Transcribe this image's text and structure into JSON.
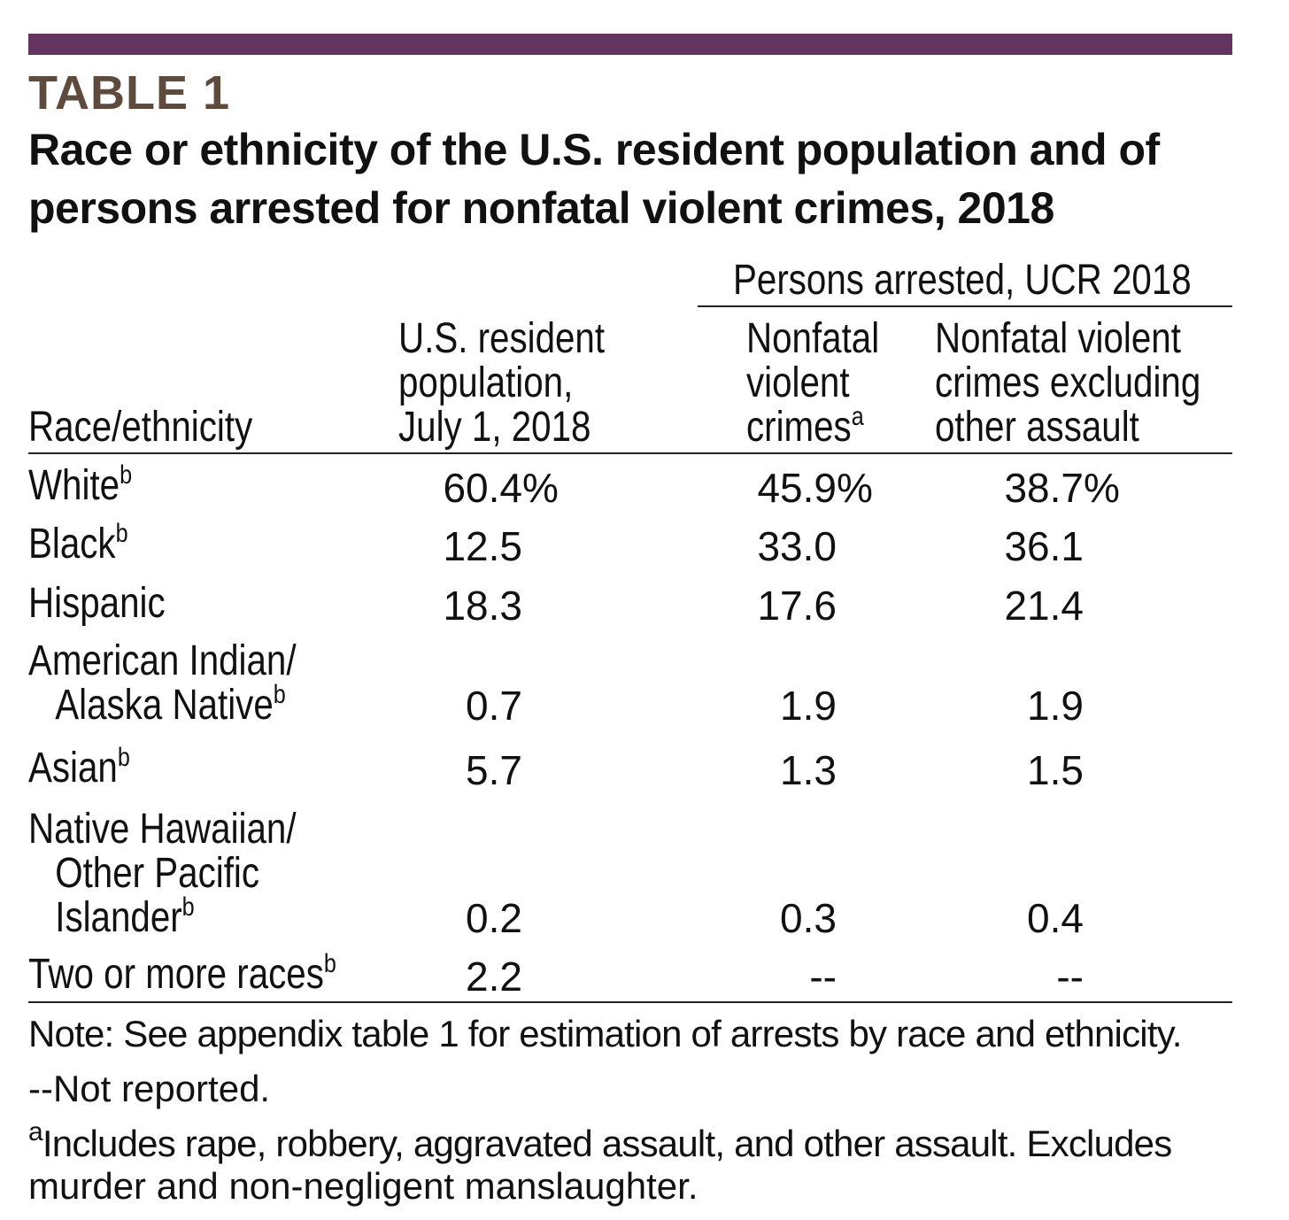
{
  "colors": {
    "bar": "#63345f",
    "label": "#5e4b3d"
  },
  "table_label": "TABLE 1",
  "title_line1": "Race or ethnicity of the U.S. resident population and of",
  "title_line2": "persons arrested for nonfatal violent crimes, 2018",
  "group_header": "Persons arrested, UCR 2018",
  "columns": {
    "race": "Race/ethnicity",
    "population": [
      "U.S. resident",
      "population,",
      "July 1, 2018"
    ],
    "nonfatal": [
      "Nonfatal",
      "violent",
      "crimes"
    ],
    "nonfatal_sup": "a",
    "excluding": [
      "Nonfatal violent",
      "crimes excluding",
      "other assault"
    ]
  },
  "rows": [
    {
      "label": [
        "White"
      ],
      "sup": "b",
      "population": "60.4",
      "nonfatal": "45.9",
      "excluding": "38.7",
      "unit": "%"
    },
    {
      "label": [
        "Black"
      ],
      "sup": "b",
      "population": "12.5",
      "nonfatal": "33.0",
      "excluding": "36.1"
    },
    {
      "label": [
        "Hispanic"
      ],
      "population": "18.3",
      "nonfatal": "17.6",
      "excluding": "21.4"
    },
    {
      "label": [
        "American Indian/",
        "Alaska Native"
      ],
      "sup": "b",
      "population": "0.7",
      "nonfatal": "1.9",
      "excluding": "1.9"
    },
    {
      "label": [
        "Asian"
      ],
      "sup": "b",
      "population": "5.7",
      "nonfatal": "1.3",
      "excluding": "1.5"
    },
    {
      "label": [
        "Native Hawaiian/",
        "Other Pacific",
        "Islander"
      ],
      "sup": "b",
      "population": "0.2",
      "nonfatal": "0.3",
      "excluding": "0.4"
    },
    {
      "label": [
        "Two or more races"
      ],
      "sup": "b",
      "population": "2.2",
      "nonfatal": "--",
      "excluding": "--"
    }
  ],
  "notes": {
    "note": "Note: See appendix table 1 for estimation of arrests by race and ethnicity.",
    "not_reported": "--Not reported.",
    "footnote_a_mark": "a",
    "footnote_a_line1": "Includes rape, robbery, aggravated assault, and other assault. Excludes",
    "footnote_a_line2": "murder and non-negligent manslaughter."
  }
}
